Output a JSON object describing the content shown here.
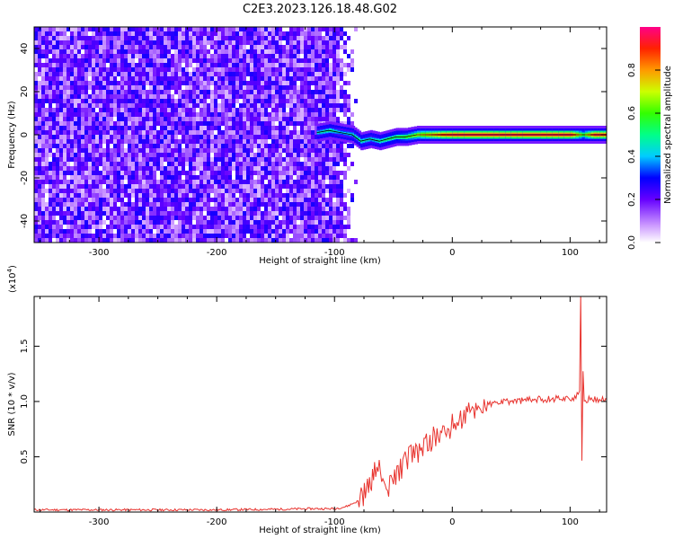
{
  "figure": {
    "title": "C2E3.2023.126.18.48.G02"
  },
  "chart_data": [
    {
      "type": "heatmap",
      "xlabel": "Height of straight line (km)",
      "ylabel": "Frequency (Hz)",
      "xlim": [
        -355,
        131
      ],
      "ylim": [
        -50,
        50
      ],
      "x_ticks": [
        -300,
        -200,
        -100,
        0,
        100
      ],
      "y_ticks": [
        -40,
        -20,
        0,
        20,
        40
      ],
      "x_tick_labels": [
        "-300",
        "-200",
        "-100",
        "0",
        "100"
      ],
      "y_tick_labels": [
        "-40",
        "-20",
        "0",
        "20",
        "40"
      ],
      "noise_region_x": [
        -355,
        -100
      ],
      "signal_trace": {
        "x": [
          -115,
          -105,
          -95,
          -85,
          -78,
          -70,
          -62,
          -55,
          -48,
          -40,
          -30,
          -20,
          -10,
          0,
          20,
          40,
          60,
          80,
          100,
          110,
          120,
          131
        ],
        "y": [
          1,
          2,
          1,
          0,
          -3,
          -2,
          -3,
          -2,
          -1,
          -1,
          0,
          0,
          0,
          0,
          0,
          0,
          0,
          0,
          0,
          0,
          0,
          0
        ],
        "amplitude": [
          0.45,
          0.5,
          0.4,
          0.45,
          0.5,
          0.45,
          0.5,
          0.55,
          0.55,
          0.6,
          0.7,
          0.8,
          0.9,
          0.95,
          0.95,
          0.95,
          0.95,
          0.95,
          0.95,
          0.6,
          0.95,
          0.9
        ]
      },
      "colorbar": {
        "label": "Normalized spectral amplitude",
        "range": [
          0,
          1
        ],
        "ticks": [
          0.0,
          0.2,
          0.4,
          0.6,
          0.8
        ],
        "tick_labels": [
          "0.0",
          "0.2",
          "0.4",
          "0.6",
          "0.8"
        ]
      }
    },
    {
      "type": "line",
      "xlabel": "Height of straight line (km)",
      "ylabel": "SNR (10 * v/v)",
      "y_scale_note": "(x10",
      "y_scale_exponent": "4",
      "y_scale_close": ")",
      "xlim": [
        -355,
        131
      ],
      "ylim": [
        0,
        1.95
      ],
      "x_ticks": [
        -300,
        -200,
        -100,
        0,
        100
      ],
      "y_ticks": [
        0.5,
        1.0,
        1.5
      ],
      "x_tick_labels": [
        "-300",
        "-200",
        "-100",
        "0",
        "100"
      ],
      "y_tick_labels": [
        "0.5",
        "1.0",
        "1.5"
      ],
      "color": "#e8332e",
      "series": [
        {
          "x": [
            -355,
            -300,
            -250,
            -200,
            -150,
            -120,
            -110,
            -100,
            -90,
            -80,
            -72,
            -66,
            -64,
            -60,
            -55,
            -50,
            -45,
            -40,
            -35,
            -30,
            -25,
            -20,
            -15,
            -10,
            -5,
            0,
            5,
            10,
            15,
            20,
            25,
            30,
            35,
            40,
            50,
            60,
            70,
            80,
            90,
            100,
            105,
            108,
            109,
            110,
            111,
            112,
            115,
            120,
            125,
            131
          ],
          "y": [
            0.02,
            0.02,
            0.02,
            0.02,
            0.025,
            0.03,
            0.03,
            0.03,
            0.05,
            0.1,
            0.2,
            0.35,
            0.45,
            0.3,
            0.18,
            0.3,
            0.38,
            0.45,
            0.55,
            0.5,
            0.6,
            0.62,
            0.68,
            0.7,
            0.72,
            0.78,
            0.82,
            0.86,
            0.9,
            0.93,
            0.96,
            0.97,
            0.98,
            0.99,
            1.0,
            1.01,
            1.02,
            1.02,
            1.03,
            1.03,
            1.03,
            1.1,
            1.95,
            0.45,
            1.25,
            1.0,
            1.02,
            1.02,
            1.02,
            1.02
          ]
        }
      ]
    }
  ]
}
